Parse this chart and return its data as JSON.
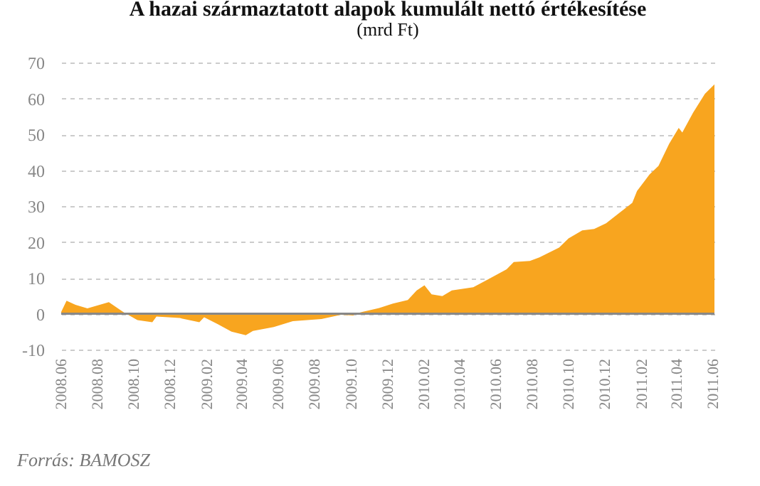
{
  "chart_data": {
    "type": "area",
    "title": "A hazai származtatott alapok kumulált nettó értékesítése",
    "subtitle": "(mrd Ft)",
    "annotations": [
      "Forrás: BAMOSZ"
    ],
    "x": [
      "2008-06-01",
      "2008-06-10",
      "2008-06-25",
      "2008-07-15",
      "2008-08-20",
      "2008-09-13",
      "2008-10-07",
      "2008-11-01",
      "2008-11-08",
      "2008-12-17",
      "2009-01-19",
      "2009-01-27",
      "2009-02-19",
      "2009-03-14",
      "2009-04-07",
      "2009-04-19",
      "2009-05-24",
      "2009-06-25",
      "2009-08-12",
      "2009-09-14",
      "2009-10-04",
      "2009-10-15",
      "2009-11-17",
      "2009-12-10",
      "2010-01-04",
      "2010-01-19",
      "2010-02-01",
      "2010-02-13",
      "2010-03-03",
      "2010-03-19",
      "2010-04-24",
      "2010-05-17",
      "2010-06-19",
      "2010-07-01",
      "2010-07-28",
      "2010-08-13",
      "2010-09-15",
      "2010-10-01",
      "2010-10-24",
      "2010-11-13",
      "2010-12-03",
      "2010-12-27",
      "2011-01-16",
      "2011-01-24",
      "2011-02-14",
      "2011-03-01",
      "2011-03-19",
      "2011-04-04",
      "2011-04-10",
      "2011-04-28",
      "2011-05-18",
      "2011-06-03"
    ],
    "series": [
      {
        "color": "#f8a51f",
        "values": [
          0.5,
          3.6,
          2.5,
          1.5,
          3.2,
          0.5,
          -1.8,
          -2.4,
          -0.8,
          -1.2,
          -2.4,
          -1,
          -2.9,
          -5,
          -6,
          -4.8,
          -3.7,
          -2.1,
          -1.5,
          -0.3,
          -0.5,
          0.3,
          1.6,
          2.8,
          3.8,
          6.5,
          7.9,
          5.4,
          4.9,
          6.5,
          7.4,
          9.4,
          12.4,
          14.4,
          14.7,
          15.7,
          18.4,
          21,
          23.2,
          23.6,
          25.2,
          28.3,
          30.9,
          34.2,
          38.8,
          41.2,
          47.4,
          51.8,
          50.5,
          56,
          61.3,
          63.9
        ]
      }
    ],
    "xlim": [
      "2008-06-01",
      "2011-06-03"
    ],
    "xticks": [
      {
        "value": "2008-06",
        "label": "2008.06"
      },
      {
        "value": "2008-08",
        "label": "2008.08"
      },
      {
        "value": "2008-10",
        "label": "2008.10"
      },
      {
        "value": "2008-12",
        "label": "2008.12"
      },
      {
        "value": "2009-02",
        "label": "2009.02"
      },
      {
        "value": "2009-04",
        "label": "2009.04"
      },
      {
        "value": "2009-06",
        "label": "2009.06"
      },
      {
        "value": "2009-08",
        "label": "2009.08"
      },
      {
        "value": "2009-10",
        "label": "2009.10"
      },
      {
        "value": "2009-12",
        "label": "2009.12"
      },
      {
        "value": "2010-02",
        "label": "2010.02"
      },
      {
        "value": "2010-04",
        "label": "2010.04"
      },
      {
        "value": "2010-06",
        "label": "2010.06"
      },
      {
        "value": "2010-08",
        "label": "2010.08"
      },
      {
        "value": "2010-10",
        "label": "2010.10"
      },
      {
        "value": "2010-12",
        "label": "2010.12"
      },
      {
        "value": "2011-02",
        "label": "2011.02"
      },
      {
        "value": "2011-04",
        "label": "2011.04"
      },
      {
        "value": "2011-06",
        "label": "2011.06"
      }
    ],
    "ylim": [
      -10,
      70
    ],
    "yticks": [
      -10,
      0,
      10,
      20,
      30,
      40,
      50,
      60,
      70
    ],
    "ref_lines": [
      {
        "axis": "y",
        "value": 0,
        "color": "#888888"
      }
    ],
    "grid": "y"
  }
}
